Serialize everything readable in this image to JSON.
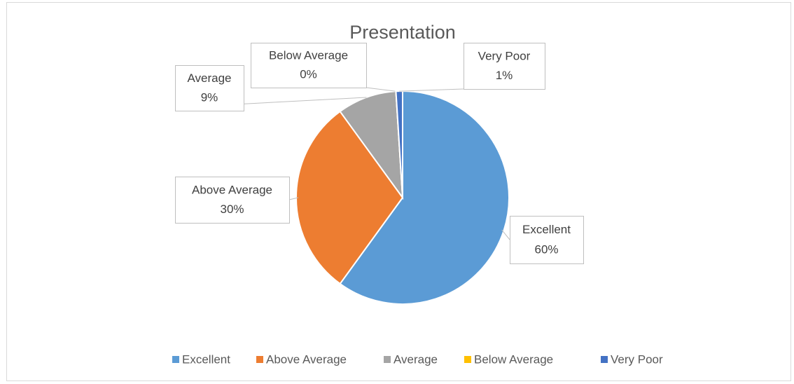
{
  "chart_data": {
    "type": "pie",
    "title": "Presentation",
    "categories": [
      "Excellent",
      "Above Average",
      "Average",
      "Below Average",
      "Very Poor"
    ],
    "values": [
      60,
      30,
      9,
      0,
      1
    ],
    "value_labels": [
      "60%",
      "30%",
      "9%",
      "0%",
      "1%"
    ],
    "colors": [
      "#5b9bd5",
      "#ed7d31",
      "#a5a5a5",
      "#ffc000",
      "#4472c4"
    ],
    "legend": "bottom"
  }
}
